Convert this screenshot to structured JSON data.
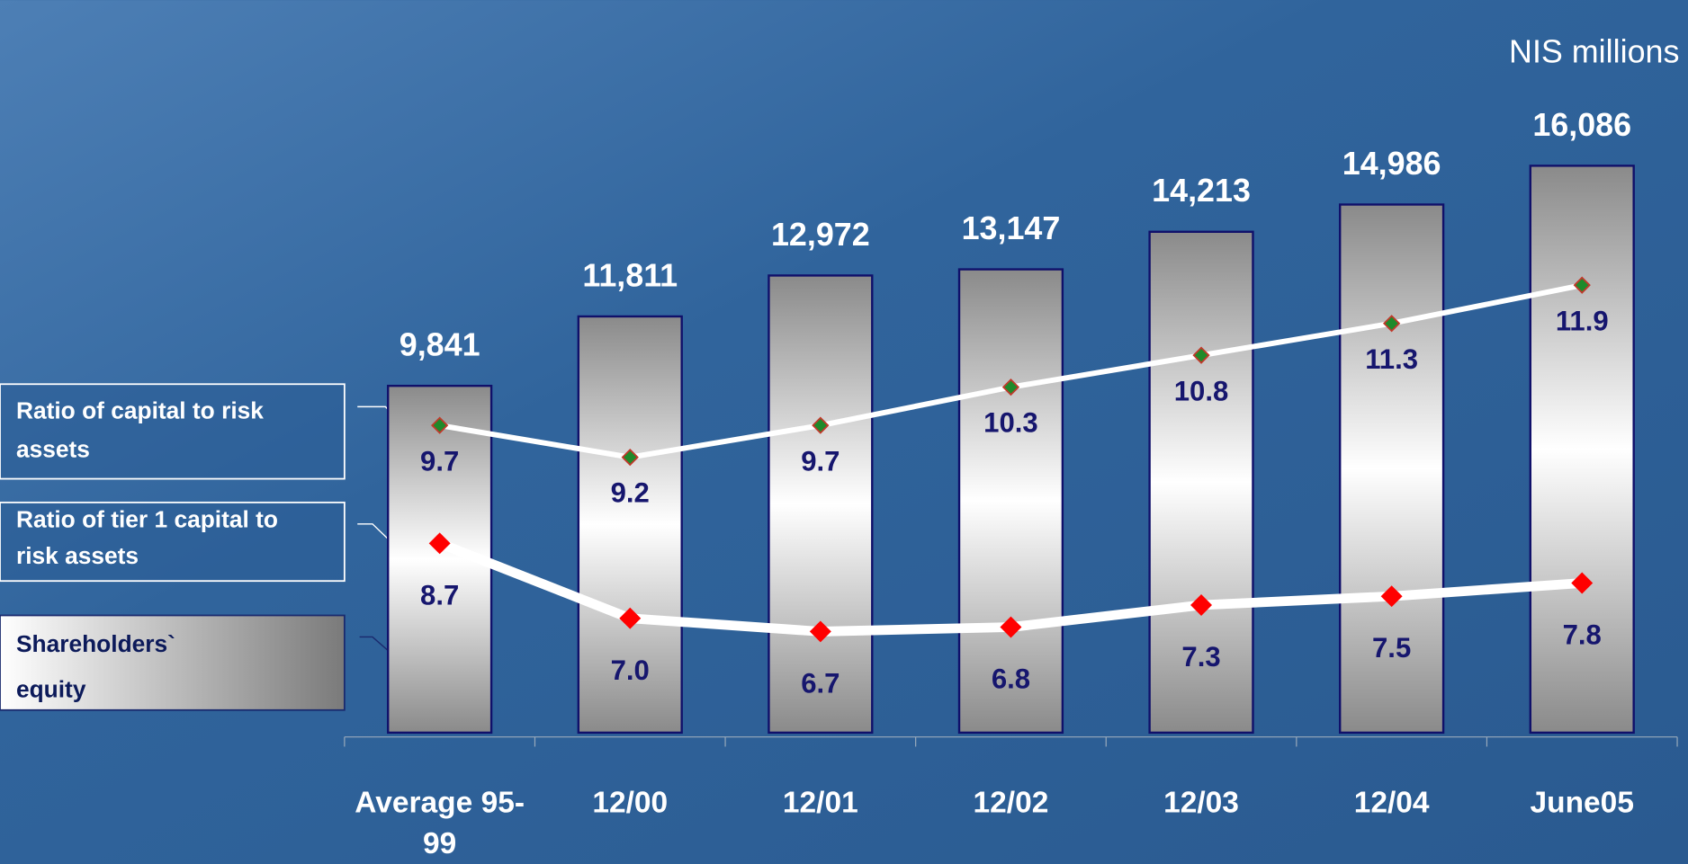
{
  "chart_data": {
    "type": "combo",
    "unit_label": "NIS millions",
    "categories": [
      "Average 95-99",
      "12/00",
      "12/01",
      "12/02",
      "12/03",
      "12/04",
      "June05"
    ],
    "series": [
      {
        "name": "Shareholders` equity",
        "type": "bar",
        "color": "#ffffff",
        "values": [
          9841,
          11811,
          12972,
          13147,
          14213,
          14986,
          16086
        ],
        "value_labels": [
          "9,841",
          "11,811",
          "12,972",
          "13,147",
          "14,213",
          "14,986",
          "16,086"
        ]
      },
      {
        "name": "Ratio of capital to risk assets",
        "type": "line",
        "color": "#ffffff",
        "marker_color": "#1f8a2a",
        "values": [
          9.7,
          9.2,
          9.7,
          10.3,
          10.8,
          11.3,
          11.9
        ],
        "value_labels": [
          "9.7",
          "9.2",
          "9.7",
          "10.3",
          "10.8",
          "11.3",
          "11.9"
        ]
      },
      {
        "name": "Ratio of tier 1 capital to risk assets",
        "type": "line",
        "color": "#ffffff",
        "marker_color": "#ff0000",
        "values": [
          8.7,
          7.0,
          6.7,
          6.8,
          7.3,
          7.5,
          7.8
        ],
        "value_labels": [
          "8.7",
          "7.0",
          "6.7",
          "6.8",
          "7.3",
          "7.5",
          "7.8"
        ]
      }
    ]
  }
}
